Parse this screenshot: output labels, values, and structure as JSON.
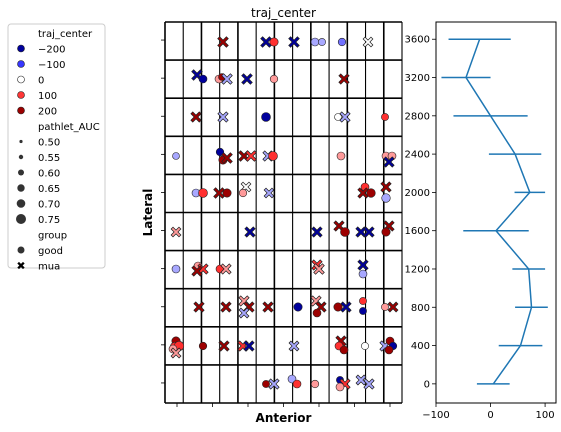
{
  "chart_data": [
    {
      "type": "scatter",
      "title": "traj_center",
      "xlabel": "Anterior",
      "ylabel": "Lateral",
      "grid": {
        "columns": 13,
        "rows": 10
      },
      "legend": {
        "placement": "left",
        "hue_title": "traj_center",
        "hue_entries": [
          {
            "label": "−200",
            "color": "#00009c"
          },
          {
            "label": "−100",
            "color": "#3737ff"
          },
          {
            "label": "0",
            "color": "#ffffff"
          },
          {
            "label": "100",
            "color": "#ff3737"
          },
          {
            "label": "200",
            "color": "#9c0000"
          }
        ],
        "size_title": "pathlet_AUC",
        "size_entries": [
          "0.50",
          "0.55",
          "0.60",
          "0.65",
          "0.70",
          "0.75"
        ],
        "style_title": "group",
        "style_entries": [
          {
            "label": "good",
            "marker": "circle"
          },
          {
            "label": "mua",
            "marker": "x"
          }
        ]
      }
    },
    {
      "type": "line",
      "yticks": [
        "0",
        "400",
        "800",
        "1200",
        "1600",
        "2000",
        "2400",
        "2800",
        "3200",
        "3600"
      ],
      "xticks": [
        "−100",
        "0",
        "100"
      ],
      "xlim": [
        -100,
        120
      ],
      "ylim": [
        -200,
        3780
      ],
      "series": [
        {
          "y": [
            0,
            400,
            800,
            1200,
            1600,
            2000,
            2400,
            2800,
            3200,
            3600
          ],
          "x": [
            5,
            55,
            75,
            70,
            10,
            72,
            45,
            0,
            -45,
            -20
          ],
          "err": [
            30,
            40,
            30,
            30,
            60,
            28,
            48,
            68,
            45,
            57
          ]
        }
      ],
      "color": "#1f77b4"
    }
  ]
}
